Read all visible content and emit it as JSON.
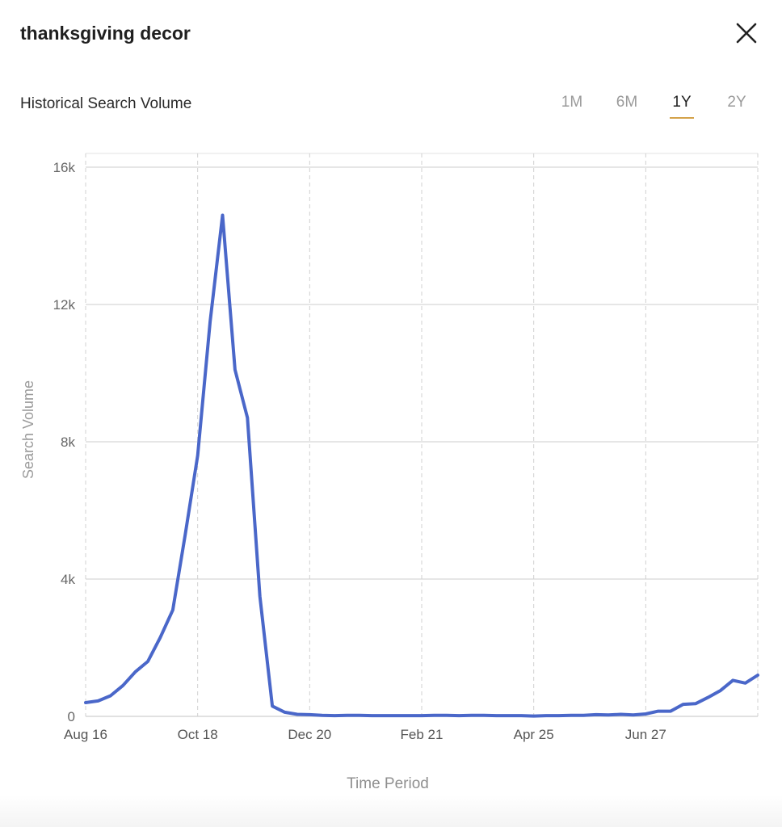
{
  "header": {
    "title": "thanksgiving decor",
    "subtitle": "Historical Search Volume"
  },
  "range_tabs": [
    {
      "label": "1M",
      "active": false
    },
    {
      "label": "6M",
      "active": false
    },
    {
      "label": "1Y",
      "active": true
    },
    {
      "label": "2Y",
      "active": false
    }
  ],
  "colors": {
    "line": "#4a67c9",
    "active_tab_underline": "#d4a24a"
  },
  "chart_data": {
    "type": "line",
    "title": "",
    "xlabel": "Time Period",
    "ylabel": "Search Volume",
    "ylim": [
      0,
      16000
    ],
    "yticks": [
      {
        "value": 0,
        "label": "0"
      },
      {
        "value": 4000,
        "label": "4k"
      },
      {
        "value": 8000,
        "label": "8k"
      },
      {
        "value": 12000,
        "label": "12k"
      },
      {
        "value": 16000,
        "label": "16k"
      }
    ],
    "xticks": [
      {
        "index": 0,
        "label": "Aug 16"
      },
      {
        "index": 9,
        "label": "Oct 18"
      },
      {
        "index": 18,
        "label": "Dec 20"
      },
      {
        "index": 27,
        "label": "Feb 21"
      },
      {
        "index": 36,
        "label": "Apr 25"
      },
      {
        "index": 45,
        "label": "Jun 27"
      }
    ],
    "grid": true,
    "series": [
      {
        "values": [
          400,
          450,
          600,
          900,
          1300,
          1600,
          2300,
          3100,
          5300,
          7600,
          11500,
          14600,
          10100,
          8700,
          3500,
          300,
          120,
          60,
          50,
          30,
          20,
          30,
          30,
          20,
          20,
          20,
          20,
          20,
          30,
          30,
          20,
          30,
          30,
          20,
          20,
          20,
          10,
          20,
          20,
          30,
          30,
          50,
          40,
          60,
          40,
          70,
          150,
          150,
          350,
          370,
          550,
          750,
          1050,
          970,
          1200
        ]
      }
    ]
  }
}
